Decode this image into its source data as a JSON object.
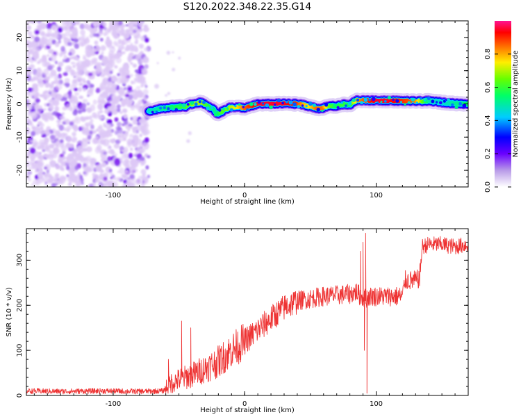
{
  "title": "S120.2022.348.22.35.G14",
  "colorbar": {
    "label": "Normalized spectral amplitude",
    "ticks": [
      0.0,
      0.2,
      0.4,
      0.6,
      0.8
    ],
    "tick_labels": [
      "0.0",
      "0.2",
      "0.4",
      "0.6",
      "0.8"
    ],
    "range": [
      0,
      1
    ],
    "colormap": [
      "#ffffff",
      "#8a2be2",
      "#0000ff",
      "#00e5ff",
      "#00ff00",
      "#ffff00",
      "#ff7f00",
      "#ff0000",
      "#ff1493"
    ]
  },
  "chart_data": [
    {
      "type": "heatmap",
      "xlabel": "Height of straight line (km)",
      "ylabel": "Frequency (Hz)",
      "xlim": [
        -166,
        170
      ],
      "ylim": [
        -25,
        25
      ],
      "x_ticks": [
        -100,
        0,
        100
      ],
      "x_tick_labels": [
        "-100",
        "0",
        "100"
      ],
      "y_ticks": [
        -20,
        -10,
        0,
        10,
        20
      ],
      "y_tick_labels": [
        "-20",
        "-10",
        "0",
        "10",
        "20"
      ],
      "noise_region_x": [
        -166,
        -73
      ],
      "ridge": {
        "x": [
          -73,
          -65,
          -55,
          -45,
          -38,
          -32,
          -28,
          -24,
          -21,
          -18,
          -14,
          -10,
          -5,
          0,
          5,
          10,
          20,
          30,
          40,
          45,
          50,
          55,
          60,
          65,
          70,
          75,
          80,
          83,
          86,
          90,
          100,
          110,
          120,
          130,
          140,
          150,
          160,
          170
        ],
        "freq": [
          -2.2,
          -1.5,
          -1.0,
          -0.8,
          0.2,
          0.5,
          -0.8,
          -1.5,
          -3.0,
          -2.5,
          -1.5,
          -1.0,
          -1.0,
          -1.2,
          -0.7,
          0.0,
          0.0,
          0.1,
          0.0,
          -0.3,
          -0.8,
          -1.4,
          -1.2,
          -0.6,
          -0.7,
          -0.1,
          -0.4,
          0.6,
          1.2,
          1.0,
          1.0,
          1.0,
          0.9,
          0.8,
          0.9,
          0.5,
          0.1,
          0.0
        ],
        "amplitude": [
          0.45,
          0.5,
          0.55,
          0.6,
          0.7,
          0.7,
          0.6,
          0.55,
          0.5,
          0.6,
          0.65,
          0.7,
          0.75,
          0.85,
          0.9,
          0.95,
          0.95,
          0.95,
          0.9,
          0.8,
          0.75,
          0.85,
          0.85,
          0.65,
          0.55,
          0.6,
          0.55,
          0.7,
          0.8,
          0.85,
          0.95,
          0.95,
          0.9,
          0.85,
          0.5,
          0.45,
          0.5,
          0.55
        ]
      }
    },
    {
      "type": "line",
      "xlabel": "Height of straight line (km)",
      "ylabel": "SNR (10 * v/v)",
      "xlim": [
        -166,
        170
      ],
      "ylim": [
        0,
        370
      ],
      "x_ticks": [
        -100,
        0,
        100
      ],
      "x_tick_labels": [
        "-100",
        "0",
        "100"
      ],
      "y_ticks": [
        0,
        100,
        200,
        300
      ],
      "y_tick_labels": [
        "0",
        "100",
        "200",
        "300"
      ],
      "color": "#ee3333",
      "trend": {
        "x": [
          -166,
          -140,
          -110,
          -80,
          -62,
          -58,
          -50,
          -40,
          -30,
          -20,
          -10,
          0,
          10,
          20,
          30,
          40,
          60,
          80,
          85,
          88,
          92,
          95,
          100,
          110,
          120,
          122,
          130,
          133,
          135,
          140,
          150,
          160,
          170
        ],
        "y": [
          10,
          9,
          10,
          9,
          10,
          25,
          35,
          45,
          60,
          75,
          100,
          120,
          145,
          170,
          195,
          210,
          220,
          225,
          230,
          220,
          215,
          220,
          220,
          220,
          220,
          255,
          255,
          260,
          330,
          335,
          335,
          330,
          335
        ]
      },
      "spikes": [
        {
          "x": -58,
          "y": 80
        },
        {
          "x": -48,
          "y": 165
        },
        {
          "x": -41,
          "y": 150
        },
        {
          "x": 88,
          "y": 320
        },
        {
          "x": 90,
          "y": 340
        },
        {
          "x": 92,
          "y": 360
        },
        {
          "x": 93,
          "y": 5
        },
        {
          "x": 91,
          "y": 100
        }
      ]
    }
  ]
}
